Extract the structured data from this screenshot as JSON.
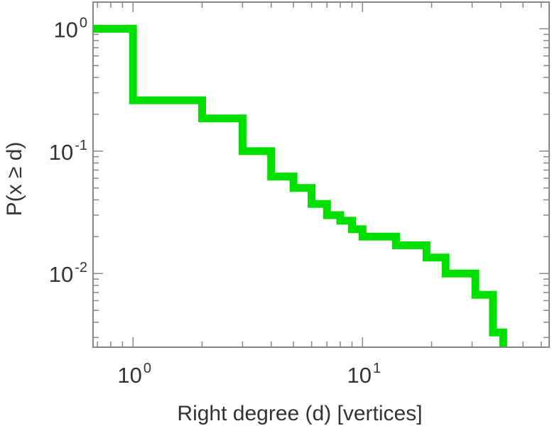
{
  "chart_data": {
    "type": "line",
    "step": true,
    "xlabel": "Right degree (d) [vertices]",
    "ylabel": "P(x ≥ d)",
    "xscale": "log",
    "yscale": "log",
    "xlim": [
      0.67,
      65
    ],
    "ylim": [
      0.0025,
      1.65
    ],
    "x_ticks": [
      {
        "base": "10",
        "exp": "0",
        "value": 1
      },
      {
        "base": "10",
        "exp": "1",
        "value": 10
      }
    ],
    "y_ticks": [
      {
        "base": "10",
        "exp": "0",
        "value": 1
      },
      {
        "base": "10",
        "exp": "-1",
        "value": 0.1
      },
      {
        "base": "10",
        "exp": "-2",
        "value": 0.01
      }
    ],
    "grid": false,
    "legend": "none",
    "series": [
      {
        "color": "#00e000",
        "points": [
          {
            "x": 0.67,
            "y": 1.0
          },
          {
            "x": 1,
            "y": 1.0
          },
          {
            "x": 1,
            "y": 0.26
          },
          {
            "x": 2,
            "y": 0.26
          },
          {
            "x": 2,
            "y": 0.185
          },
          {
            "x": 3,
            "y": 0.185
          },
          {
            "x": 3,
            "y": 0.1
          },
          {
            "x": 4,
            "y": 0.1
          },
          {
            "x": 4,
            "y": 0.062
          },
          {
            "x": 5,
            "y": 0.062
          },
          {
            "x": 5,
            "y": 0.05
          },
          {
            "x": 6,
            "y": 0.05
          },
          {
            "x": 6,
            "y": 0.037
          },
          {
            "x": 7,
            "y": 0.037
          },
          {
            "x": 7,
            "y": 0.03
          },
          {
            "x": 8,
            "y": 0.03
          },
          {
            "x": 8,
            "y": 0.027
          },
          {
            "x": 9,
            "y": 0.027
          },
          {
            "x": 9,
            "y": 0.023
          },
          {
            "x": 10,
            "y": 0.023
          },
          {
            "x": 10,
            "y": 0.02
          },
          {
            "x": 14,
            "y": 0.02
          },
          {
            "x": 14,
            "y": 0.017
          },
          {
            "x": 19,
            "y": 0.017
          },
          {
            "x": 19,
            "y": 0.0135
          },
          {
            "x": 23,
            "y": 0.0135
          },
          {
            "x": 23,
            "y": 0.01
          },
          {
            "x": 31,
            "y": 0.01
          },
          {
            "x": 31,
            "y": 0.0067
          },
          {
            "x": 37,
            "y": 0.0067
          },
          {
            "x": 37,
            "y": 0.0033
          },
          {
            "x": 41,
            "y": 0.0033
          },
          {
            "x": 41,
            "y": 0.0025
          }
        ]
      }
    ]
  }
}
